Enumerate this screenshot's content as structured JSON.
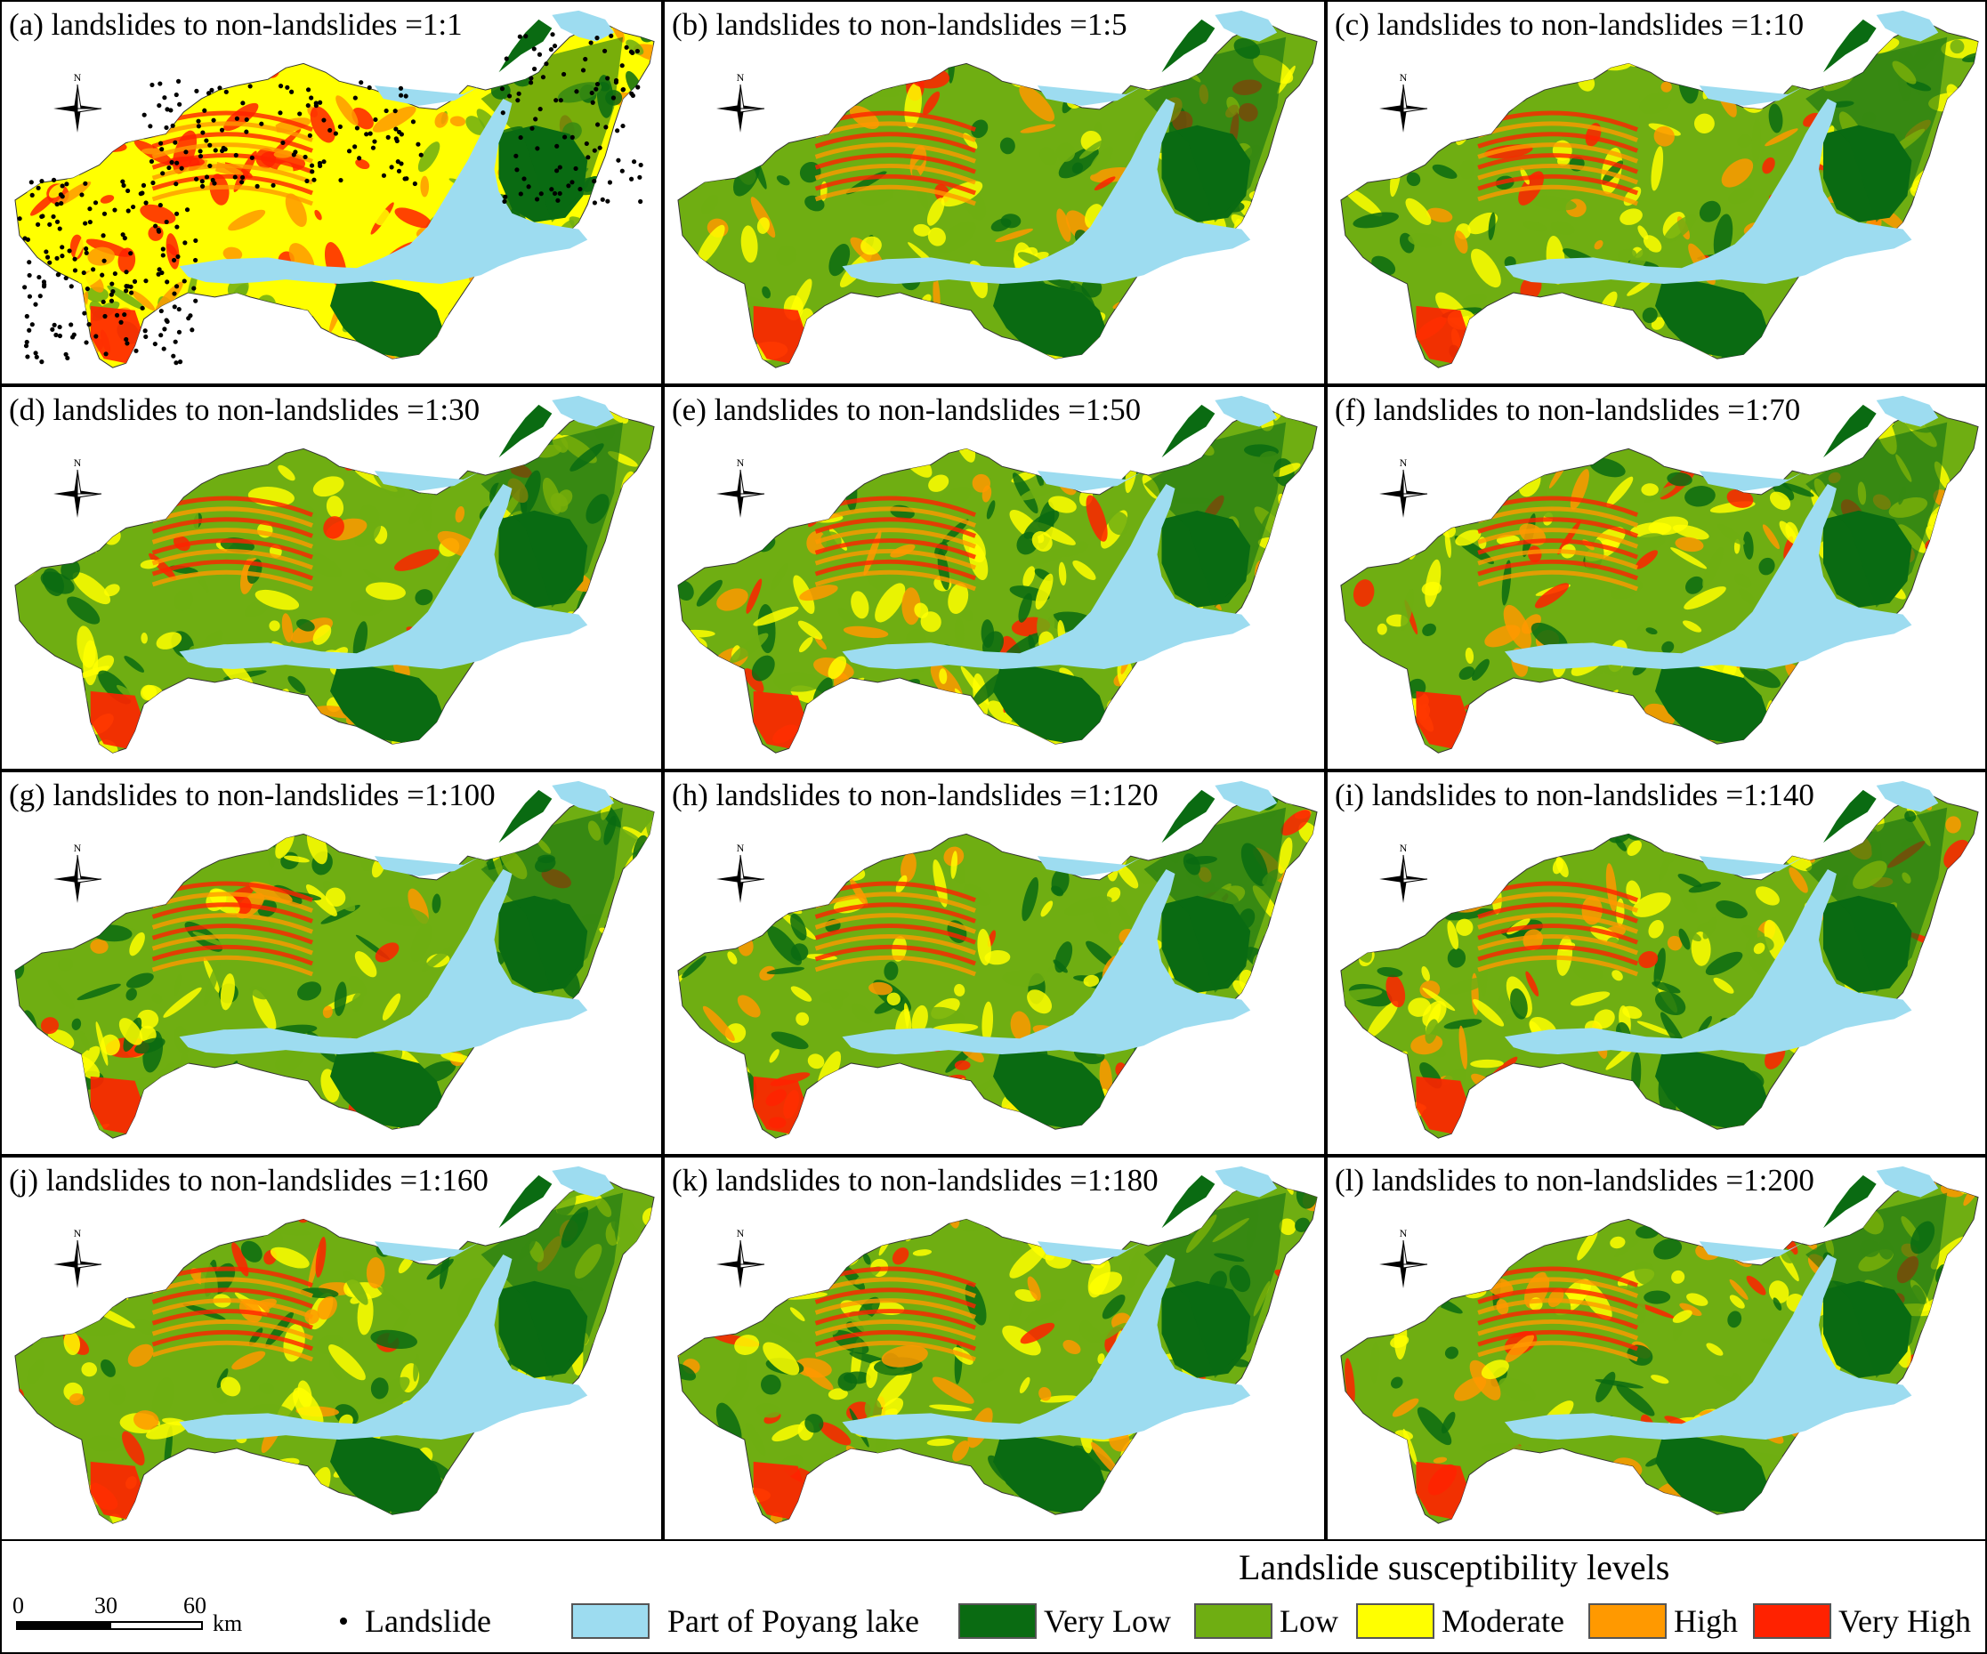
{
  "panels": [
    {
      "id": "a",
      "title": "(a)  landslides to non-landslides =1:1"
    },
    {
      "id": "b",
      "title": "(b) landslides to non-landslides =1:5"
    },
    {
      "id": "c",
      "title": "(c) landslides to non-landslides =1:10"
    },
    {
      "id": "d",
      "title": "(d) landslides to non-landslides =1:30"
    },
    {
      "id": "e",
      "title": "(e) landslides to non-landslides =1:50"
    },
    {
      "id": "f",
      "title": "(f) landslides to non-landslides =1:70"
    },
    {
      "id": "g",
      "title": "(g) landslides to non-landslides =1:100"
    },
    {
      "id": "h",
      "title": "(h) landslides to non-landslides =1:120"
    },
    {
      "id": "i",
      "title": "(i) landslides to non-landslides =1:140"
    },
    {
      "id": "j",
      "title": "(j) landslides to non-landslides =1:160"
    },
    {
      "id": "k",
      "title": "(k) landslides to non-landslides =1:180"
    },
    {
      "id": "l",
      "title": "(l) landslides to non-landslides =1:200"
    }
  ],
  "compass": {
    "north_label": "N"
  },
  "legend": {
    "title": "Landslide susceptibility levels",
    "scale": {
      "labels": [
        "0",
        "30",
        "60"
      ],
      "unit": "km"
    },
    "landslide_label": "Landslide",
    "items": [
      {
        "label": "Part of Poyang lake",
        "color": "#9ddcf0"
      },
      {
        "label": "Very Low",
        "color": "#0a6b12"
      },
      {
        "label": "Low",
        "color": "#6fae12"
      },
      {
        "label": "Moderate",
        "color": "#ffff00"
      },
      {
        "label": "High",
        "color": "#ff9900"
      },
      {
        "label": "Very High",
        "color": "#ff2200"
      }
    ]
  }
}
